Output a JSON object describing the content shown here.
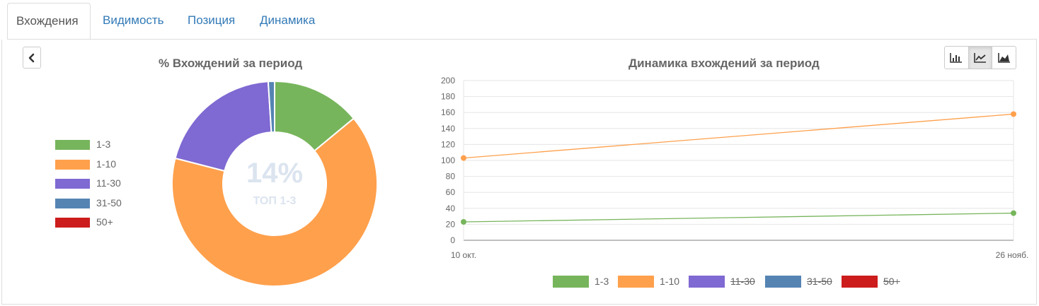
{
  "tabs": [
    {
      "label": "Вхождения",
      "active": true
    },
    {
      "label": "Видимость",
      "active": false
    },
    {
      "label": "Позиция",
      "active": false
    },
    {
      "label": "Динамика",
      "active": false
    }
  ],
  "donut": {
    "title": "% Вхождений за период",
    "center_value": "14%",
    "center_label": "ТОП 1-3",
    "legend": [
      {
        "label": "1-3",
        "color": "#77b55c"
      },
      {
        "label": "1-10",
        "color": "#ffa04c"
      },
      {
        "label": "11-30",
        "color": "#7f69d2"
      },
      {
        "label": "31-50",
        "color": "#5584b3"
      },
      {
        "label": "50+",
        "color": "#cc1c1c"
      }
    ]
  },
  "line_chart": {
    "title": "Динамика вхождений за период",
    "chart_type_buttons": [
      {
        "icon": "bar-chart-icon",
        "active": false
      },
      {
        "icon": "line-chart-icon",
        "active": true
      },
      {
        "icon": "area-chart-icon",
        "active": false
      }
    ],
    "legend": [
      {
        "label": "1-3",
        "color": "#77b55c",
        "hidden": false
      },
      {
        "label": "1-10",
        "color": "#ffa04c",
        "hidden": false
      },
      {
        "label": "11-30",
        "color": "#7f69d2",
        "hidden": true
      },
      {
        "label": "31-50",
        "color": "#5584b3",
        "hidden": true
      },
      {
        "label": "50+",
        "color": "#cc1c1c",
        "hidden": true
      }
    ]
  },
  "chart_data": [
    {
      "type": "pie",
      "title": "% Вхождений за период",
      "categories": [
        "1-3",
        "1-10",
        "11-30",
        "31-50",
        "50+"
      ],
      "values": [
        14,
        65,
        20,
        1,
        0
      ],
      "colors": [
        "#77b55c",
        "#ffa04c",
        "#7f69d2",
        "#5584b3",
        "#cc1c1c"
      ],
      "legend_position": "left"
    },
    {
      "type": "line",
      "title": "Динамика вхождений за период",
      "x": [
        "10 окт.",
        "26 нояб."
      ],
      "series": [
        {
          "name": "1-3",
          "values": [
            23,
            34
          ],
          "color": "#77b55c"
        },
        {
          "name": "1-10",
          "values": [
            103,
            158
          ],
          "color": "#ffa04c"
        }
      ],
      "ylim": [
        0,
        200
      ],
      "yticks": [
        0,
        20,
        40,
        60,
        80,
        100,
        120,
        140,
        160,
        180,
        200
      ],
      "grid": true,
      "legend_position": "bottom"
    }
  ]
}
